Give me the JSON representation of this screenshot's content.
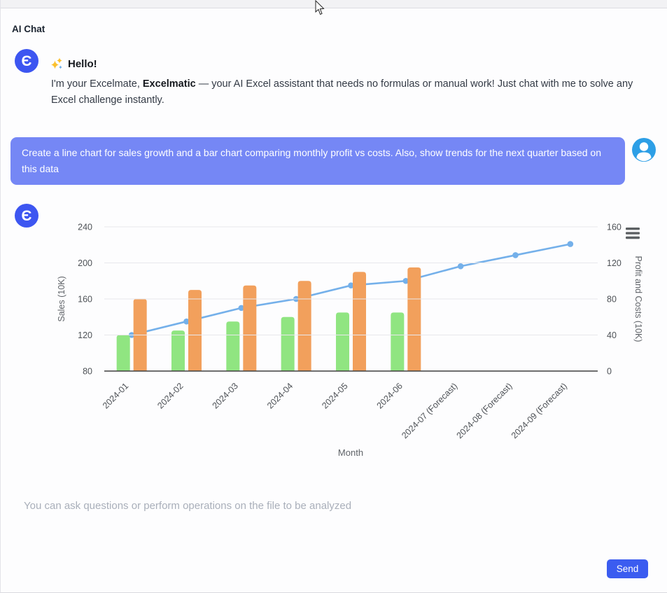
{
  "page": {
    "title": "AI Chat"
  },
  "assistant": {
    "avatar_glyph": "Є",
    "greeting_heading": "Hello!",
    "greeting_prefix": "I'm your Excelmate, ",
    "greeting_bold": "Excelmatic",
    "greeting_suffix": " — your AI Excel assistant that needs no formulas or manual work! Just chat with me to solve any Excel challenge instantly."
  },
  "user_message": {
    "text": "Create a line chart for sales growth and a bar chart comparing monthly profit vs costs. Also, show trends for the next quarter based on this data"
  },
  "composer": {
    "placeholder": "You can ask questions or perform operations on the file to be analyzed",
    "send_label": "Send"
  },
  "colors": {
    "bot_avatar": "#3d56f1",
    "user_avatar": "#2d9fe6",
    "user_bubble": "#7587f5",
    "send_button": "#3b5cf0",
    "sales_line": "#74b0ea",
    "profit_bar": "#90e581",
    "costs_bar": "#f2a05c",
    "grid_line": "#e8e8ec",
    "axis_line": "#3f3f3f"
  },
  "chart_data": {
    "type": "bar",
    "subtype": "combo bar + line, dual y-axis",
    "categories": [
      "2024-01",
      "2024-02",
      "2024-03",
      "2024-04",
      "2024-05",
      "2024-06",
      "2024-07 (Forecast)",
      "2024-08 (Forecast)",
      "2024-09 (Forecast)"
    ],
    "series": [
      {
        "name": "Profit",
        "type": "bar",
        "axis": "right",
        "color": "#90e581",
        "values": [
          40,
          45,
          55,
          60,
          65,
          65
        ]
      },
      {
        "name": "Costs",
        "type": "bar",
        "axis": "right",
        "color": "#f2a05c",
        "values": [
          80,
          90,
          95,
          100,
          110,
          115
        ]
      },
      {
        "name": "Sales",
        "type": "line",
        "axis": "left",
        "color": "#74b0ea",
        "values": [
          120,
          135,
          150,
          160,
          175,
          180,
          196.3,
          208.6,
          220.9
        ]
      }
    ],
    "forecast_note": "last 3 Sales points are forecast months",
    "xlabel": "Month",
    "left_axis": {
      "label": "Sales (10K)",
      "ticks": [
        80,
        120,
        160,
        200,
        240
      ],
      "range": [
        80,
        240
      ]
    },
    "right_axis": {
      "label": "Profit and Costs (10K)",
      "ticks": [
        0,
        40,
        80,
        120,
        160
      ],
      "range": [
        0,
        160
      ]
    },
    "grid": true,
    "legend": "none"
  }
}
